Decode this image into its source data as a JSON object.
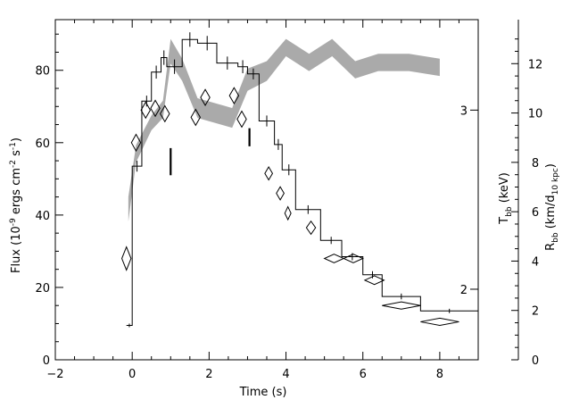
{
  "chart_data": {
    "type": "line",
    "xlabel": "Time (s)",
    "xlim": [
      -2,
      9
    ],
    "x_ticks": [
      -2,
      0,
      2,
      4,
      6,
      8
    ],
    "ylabel_left": {
      "main": "Flux (10",
      "sup1": "-9",
      "mid": " ergs cm",
      "sup2": "-2",
      "sp": " s",
      "sup3": "-1",
      "end": ")"
    },
    "ylim_left": [
      0,
      94
    ],
    "y_ticks_left": [
      0,
      20,
      40,
      60,
      80
    ],
    "ylabel_t": {
      "main": "T",
      "sub": "bb",
      "end": " (keV)"
    },
    "y_ticks_t": [
      {
        "label": "2",
        "flux": 19.5
      },
      {
        "label": "3",
        "flux": 69
      }
    ],
    "ylabel_r": {
      "main": "R",
      "sub": "bb",
      "mid": " (km/d",
      "sub2": "10 kpc",
      "end": ")"
    },
    "y_ticks_r": [
      0,
      2,
      4,
      6,
      8,
      10,
      12
    ],
    "r_to_flux": 6.82,
    "flux_steps": [
      {
        "x0": -0.15,
        "x1": 0.0,
        "y": 9.5,
        "err": 0.5
      },
      {
        "x0": 0.0,
        "x1": 0.25,
        "y": 53.5,
        "err": 1.5
      },
      {
        "x0": 0.25,
        "x1": 0.5,
        "y": 71.5,
        "err": 1.5
      },
      {
        "x0": 0.5,
        "x1": 0.75,
        "y": 79.5,
        "err": 1.8
      },
      {
        "x0": 0.75,
        "x1": 0.9,
        "y": 83.5,
        "err": 2.0
      },
      {
        "x0": 0.9,
        "x1": 1.3,
        "y": 81.0,
        "err": 2.0
      },
      {
        "x0": 1.3,
        "x1": 1.7,
        "y": 88.5,
        "err": 2.0
      },
      {
        "x0": 1.7,
        "x1": 2.2,
        "y": 87.5,
        "err": 2.0
      },
      {
        "x0": 2.2,
        "x1": 2.75,
        "y": 82.0,
        "err": 1.8
      },
      {
        "x0": 2.75,
        "x1": 3.0,
        "y": 81.0,
        "err": 1.8
      },
      {
        "x0": 3.0,
        "x1": 3.3,
        "y": 79.0,
        "err": 1.5
      },
      {
        "x0": 3.3,
        "x1": 3.7,
        "y": 66.0,
        "err": 1.5
      },
      {
        "x0": 3.7,
        "x1": 3.9,
        "y": 59.5,
        "err": 1.5
      },
      {
        "x0": 3.9,
        "x1": 4.25,
        "y": 52.5,
        "err": 1.5
      },
      {
        "x0": 4.25,
        "x1": 4.9,
        "y": 41.5,
        "err": 1.2
      },
      {
        "x0": 4.9,
        "x1": 5.45,
        "y": 33.0,
        "err": 1.0
      },
      {
        "x0": 5.45,
        "x1": 6.0,
        "y": 28.5,
        "err": 1.0
      },
      {
        "x0": 6.0,
        "x1": 6.5,
        "y": 23.5,
        "err": 1.0
      },
      {
        "x0": 6.5,
        "x1": 7.5,
        "y": 17.5,
        "err": 0.8
      },
      {
        "x0": 7.5,
        "x1": 9.0,
        "y": 13.5,
        "err": 0.6
      }
    ],
    "radius_band": [
      {
        "x": -0.1,
        "lo": 5.6,
        "hi": 6.6
      },
      {
        "x": 0.1,
        "lo": 8.0,
        "hi": 8.7
      },
      {
        "x": 0.5,
        "lo": 9.3,
        "hi": 9.9
      },
      {
        "x": 0.8,
        "lo": 9.8,
        "hi": 10.5
      },
      {
        "x": 1.0,
        "lo": 12.0,
        "hi": 13.0
      },
      {
        "x": 1.3,
        "lo": 11.3,
        "hi": 12.2
      },
      {
        "x": 1.7,
        "lo": 9.8,
        "hi": 10.6
      },
      {
        "x": 2.6,
        "lo": 9.4,
        "hi": 10.2
      },
      {
        "x": 3.0,
        "lo": 10.9,
        "hi": 11.8
      },
      {
        "x": 3.5,
        "lo": 11.3,
        "hi": 12.1
      },
      {
        "x": 4.0,
        "lo": 12.3,
        "hi": 13.0
      },
      {
        "x": 4.6,
        "lo": 11.7,
        "hi": 12.4
      },
      {
        "x": 5.2,
        "lo": 12.3,
        "hi": 13.0
      },
      {
        "x": 5.8,
        "lo": 11.4,
        "hi": 12.1
      },
      {
        "x": 6.4,
        "lo": 11.7,
        "hi": 12.4
      },
      {
        "x": 7.2,
        "lo": 11.7,
        "hi": 12.4
      },
      {
        "x": 8.0,
        "lo": 11.5,
        "hi": 12.2
      }
    ],
    "temperature_points": [
      {
        "x": -0.15,
        "flux": 28.0,
        "dx": 0.12,
        "dy": 3.2
      },
      {
        "x": 0.1,
        "flux": 60.0,
        "dx": 0.12,
        "dy": 2.3
      },
      {
        "x": 0.35,
        "flux": 69.0,
        "dx": 0.12,
        "dy": 2.2
      },
      {
        "x": 0.6,
        "flux": 69.5,
        "dx": 0.12,
        "dy": 2.2
      },
      {
        "x": 0.85,
        "flux": 68.0,
        "dx": 0.12,
        "dy": 2.2
      },
      {
        "x": 1.65,
        "flux": 67.0,
        "dx": 0.12,
        "dy": 2.2
      },
      {
        "x": 1.9,
        "flux": 72.5,
        "dx": 0.12,
        "dy": 2.2
      },
      {
        "x": 2.65,
        "flux": 73.0,
        "dx": 0.12,
        "dy": 2.2
      },
      {
        "x": 2.85,
        "flux": 66.5,
        "dx": 0.12,
        "dy": 2.2
      },
      {
        "x": 3.55,
        "flux": 51.5,
        "dx": 0.1,
        "dy": 1.8
      },
      {
        "x": 3.85,
        "flux": 46.0,
        "dx": 0.1,
        "dy": 1.8
      },
      {
        "x": 4.05,
        "flux": 40.5,
        "dx": 0.08,
        "dy": 1.8
      },
      {
        "x": 4.65,
        "flux": 36.5,
        "dx": 0.12,
        "dy": 1.8
      },
      {
        "x": 5.25,
        "flux": 28.0,
        "dx": 0.25,
        "dy": 1.2
      },
      {
        "x": 5.75,
        "flux": 28.0,
        "dx": 0.25,
        "dy": 1.2
      },
      {
        "x": 6.3,
        "flux": 22.0,
        "dx": 0.25,
        "dy": 1.2
      },
      {
        "x": 7.0,
        "flux": 15.0,
        "dx": 0.5,
        "dy": 1.0
      },
      {
        "x": 8.0,
        "flux": 10.5,
        "dx": 0.5,
        "dy": 1.0
      }
    ],
    "vertical_marks": [
      {
        "x": 1.0,
        "flux_lo": 51.0,
        "flux_hi": 58.5
      },
      {
        "x": 3.05,
        "flux_lo": 59.0,
        "flux_hi": 64.0
      }
    ],
    "band_color": "#aaaaaa"
  }
}
